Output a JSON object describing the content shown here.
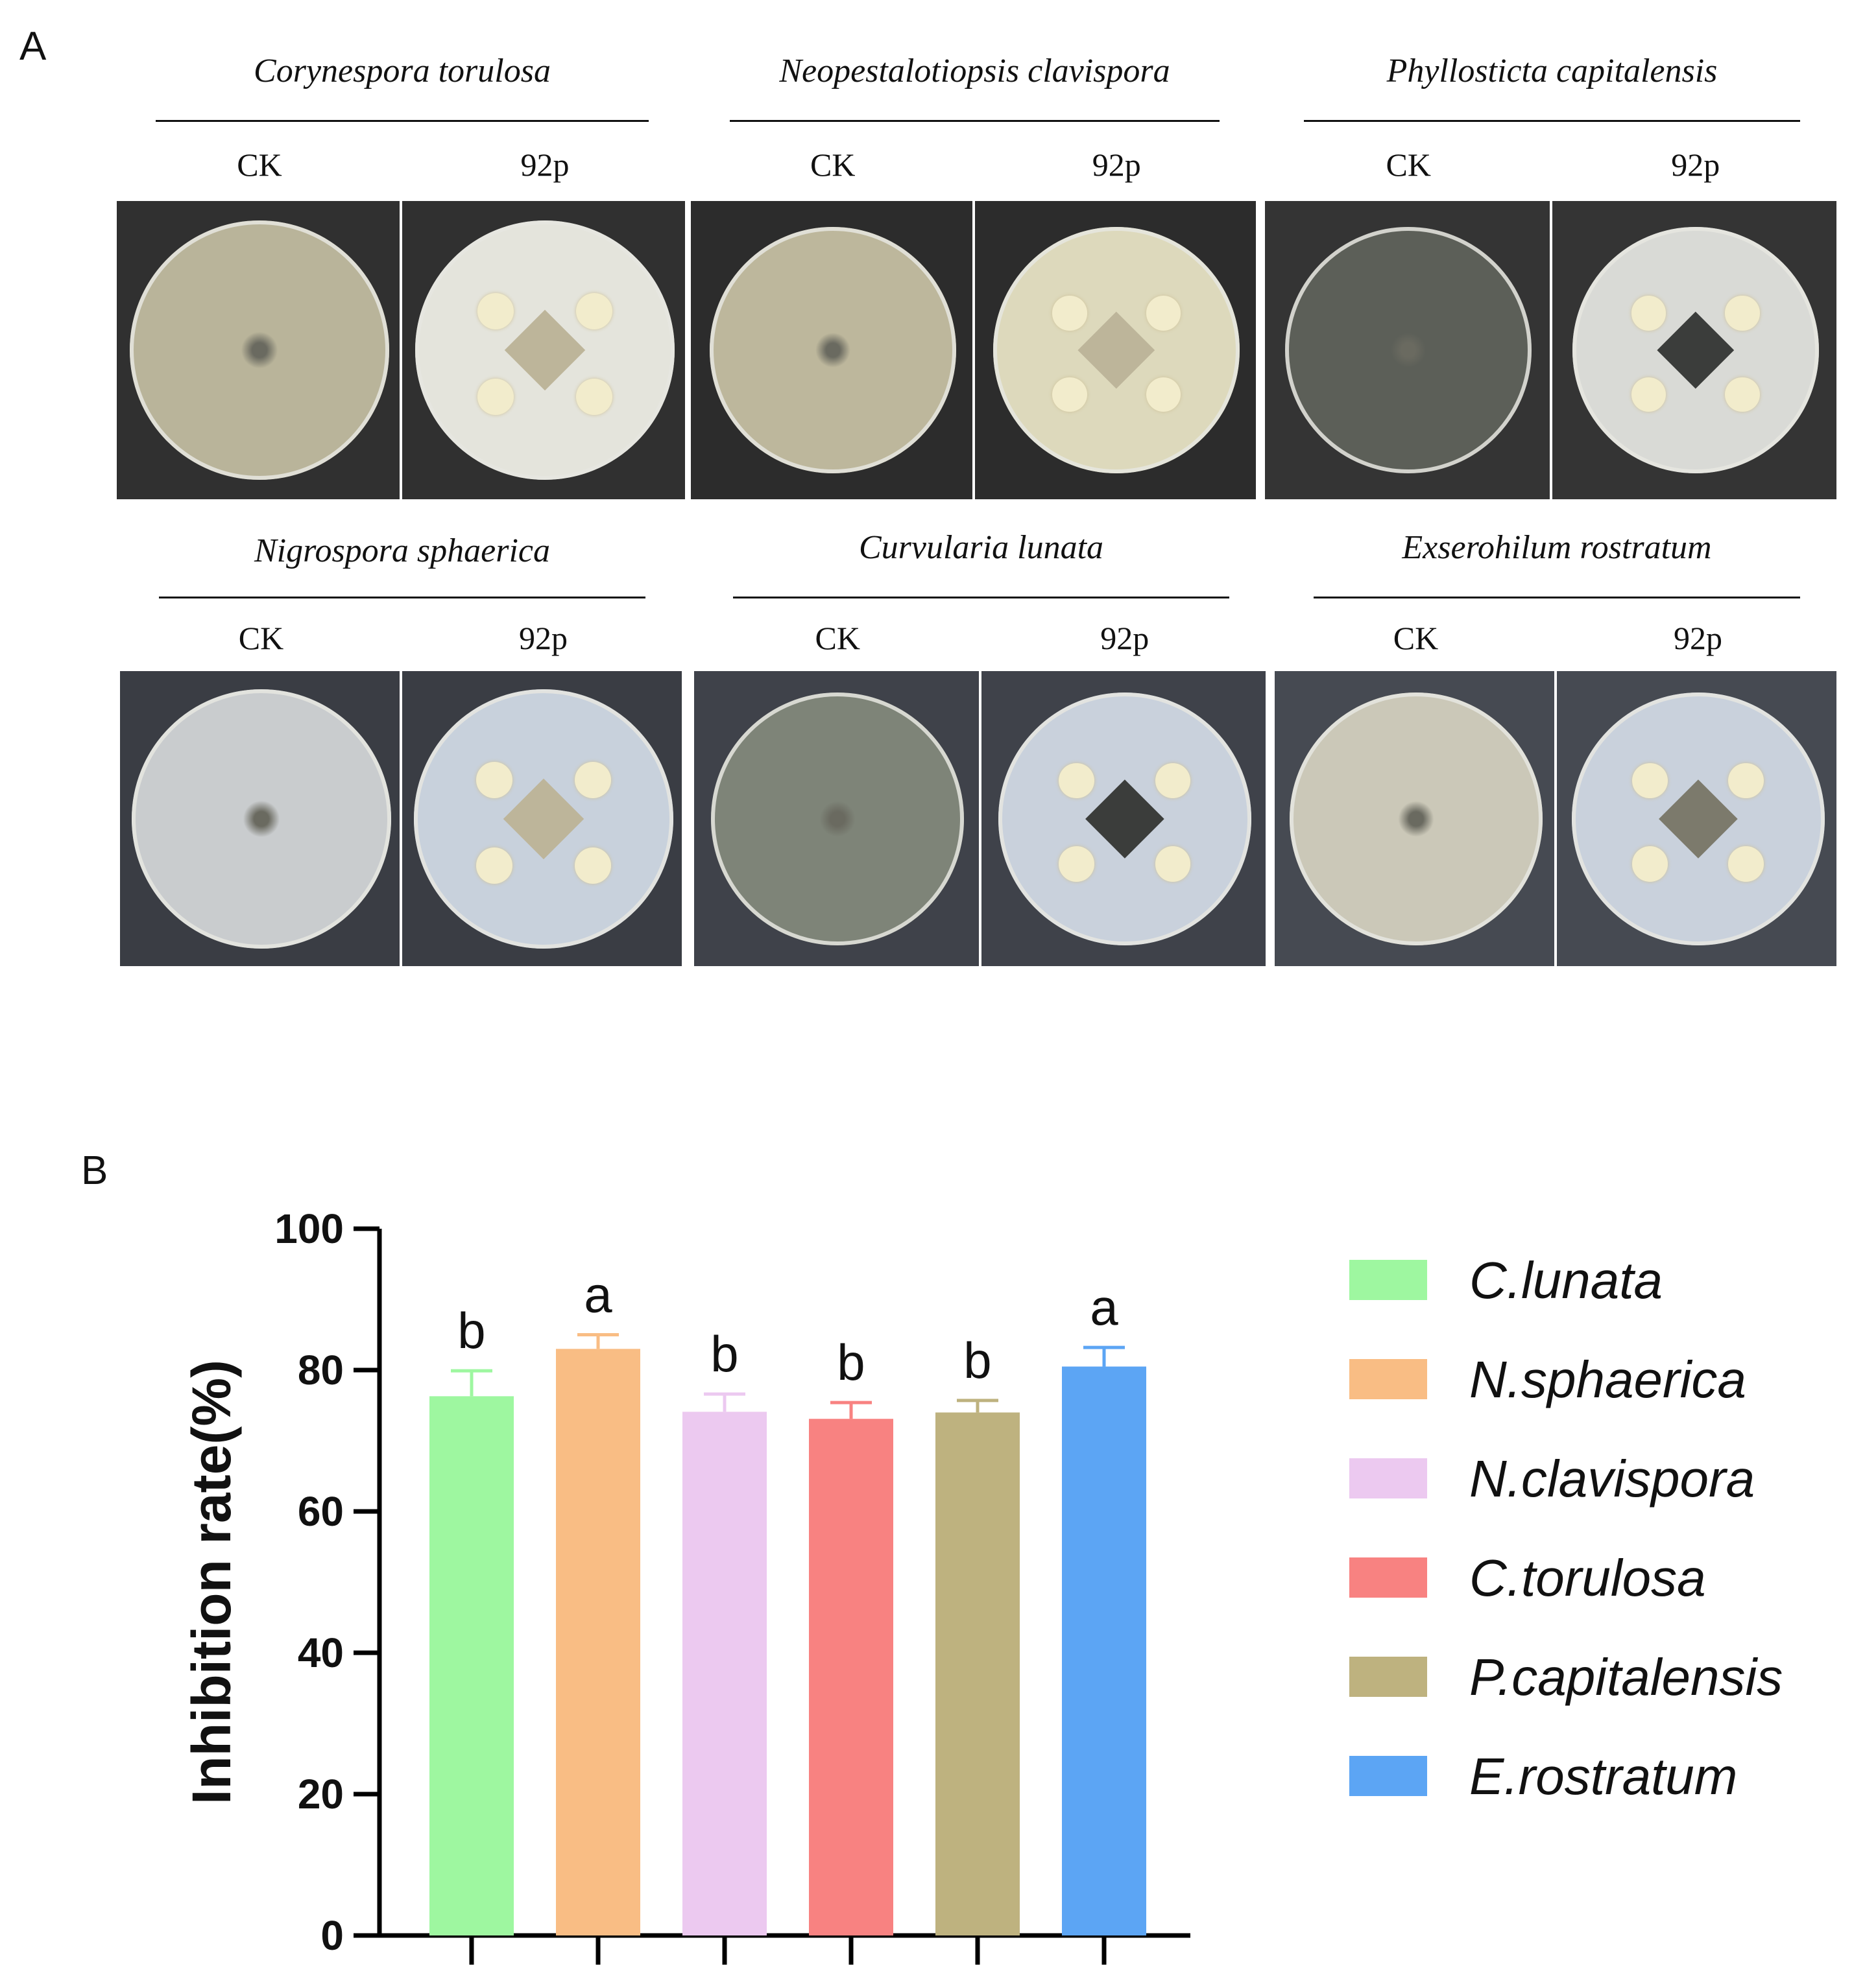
{
  "panel_a": {
    "letter": "A",
    "groups": [
      {
        "species": "Corynespora torulosa",
        "ck": "CK",
        "treated": "92p",
        "ck_color": "#b9b49a",
        "tr_color": "#e4e4dc"
      },
      {
        "species": "Neopestalotiopsis clavispora",
        "ck": "CK",
        "treated": "92p",
        "ck_color": "#bdb79c",
        "tr_color": "#ddd9bc"
      },
      {
        "species": "Phyllosticta capitalensis",
        "ck": "CK",
        "treated": "92p",
        "ck_color": "#5c5f58",
        "tr_color": "#d9dad6"
      },
      {
        "species": "Nigrospora sphaerica",
        "ck": "CK",
        "treated": "92p",
        "ck_color": "#c9ccce",
        "tr_color": "#c8d1dc"
      },
      {
        "species": "Curvularia lunata",
        "ck": "CK",
        "treated": "92p",
        "ck_color": "#7e8478",
        "tr_color": "#c9d1dc"
      },
      {
        "species": "Exserohilum rostratum",
        "ck": "CK",
        "treated": "92p",
        "ck_color": "#cbc8b8",
        "tr_color": "#c9d1dc"
      }
    ]
  },
  "panel_b": {
    "letter": "B"
  },
  "chart_data": {
    "type": "bar",
    "title": "",
    "xlabel": "",
    "ylabel": "Inhibition rate(%)",
    "ylim": [
      0,
      100
    ],
    "yticks": [
      0,
      20,
      40,
      60,
      80,
      100
    ],
    "categories": [
      "C.lunata",
      "N.sphaerica",
      "N.clavispora",
      "C.torulosa",
      "P.capitalensis",
      "E.rostratum"
    ],
    "values": [
      76.3,
      83.0,
      74.1,
      73.1,
      74.0,
      80.5
    ],
    "errors": [
      3.6,
      2.0,
      2.5,
      2.3,
      1.7,
      2.7
    ],
    "significance": [
      "b",
      "a",
      "b",
      "b",
      "b",
      "a"
    ],
    "colors": [
      "#9ef7a0",
      "#f9bd84",
      "#ecc9f0",
      "#f88281",
      "#beb27f",
      "#5ca5f4"
    ],
    "legend": {
      "position": "right",
      "entries": [
        "C.lunata",
        "N.sphaerica",
        "N.clavispora",
        "C.torulosa",
        "P.capitalensis",
        "E.rostratum"
      ]
    },
    "grid": false
  }
}
